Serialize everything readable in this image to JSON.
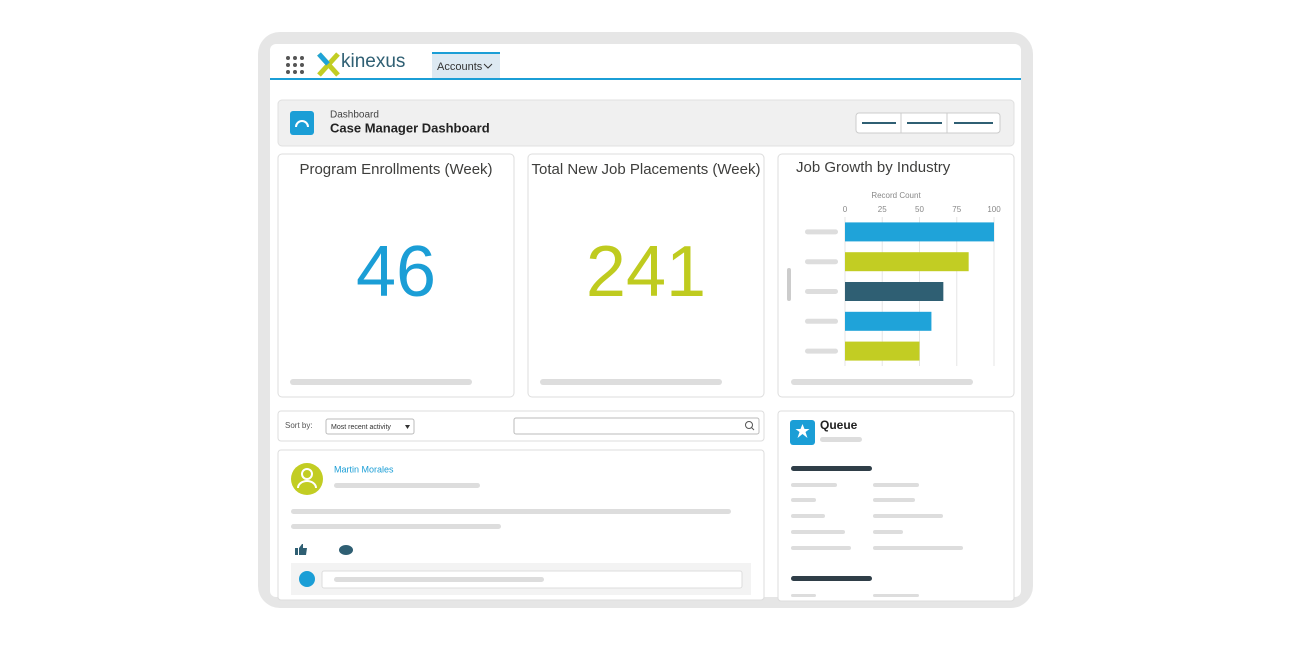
{
  "nav": {
    "brand": "kinexus",
    "tab": "Accounts"
  },
  "header": {
    "eyebrow": "Dashboard",
    "title": "Case Manager Dashboard"
  },
  "metrics": [
    {
      "title": "Program Enrollments (Week)",
      "value": 46,
      "color": "#1b9ed6"
    },
    {
      "title": "Total New Job Placements (Week)",
      "value": 241,
      "color": "#bfcb1f"
    }
  ],
  "chart_data": {
    "type": "bar",
    "orientation": "horizontal",
    "title": "Job Growth by Industry",
    "x_label": "Record Count",
    "categories": [
      null,
      null,
      null,
      null,
      null
    ],
    "values": [
      100,
      83,
      66,
      58,
      50
    ],
    "colors": [
      "#1fa3d9",
      "#c2cd23",
      "#2f5f73",
      "#1fa3d9",
      "#c2cd23"
    ],
    "xlim": [
      0,
      100
    ],
    "xticks": [
      0,
      25,
      50,
      75,
      100
    ],
    "grid": true
  },
  "feed": {
    "sort_label": "Sort by:",
    "sort_value": "Most recent activity",
    "post_author": "Martin Morales"
  },
  "queue": {
    "title": "Queue"
  }
}
